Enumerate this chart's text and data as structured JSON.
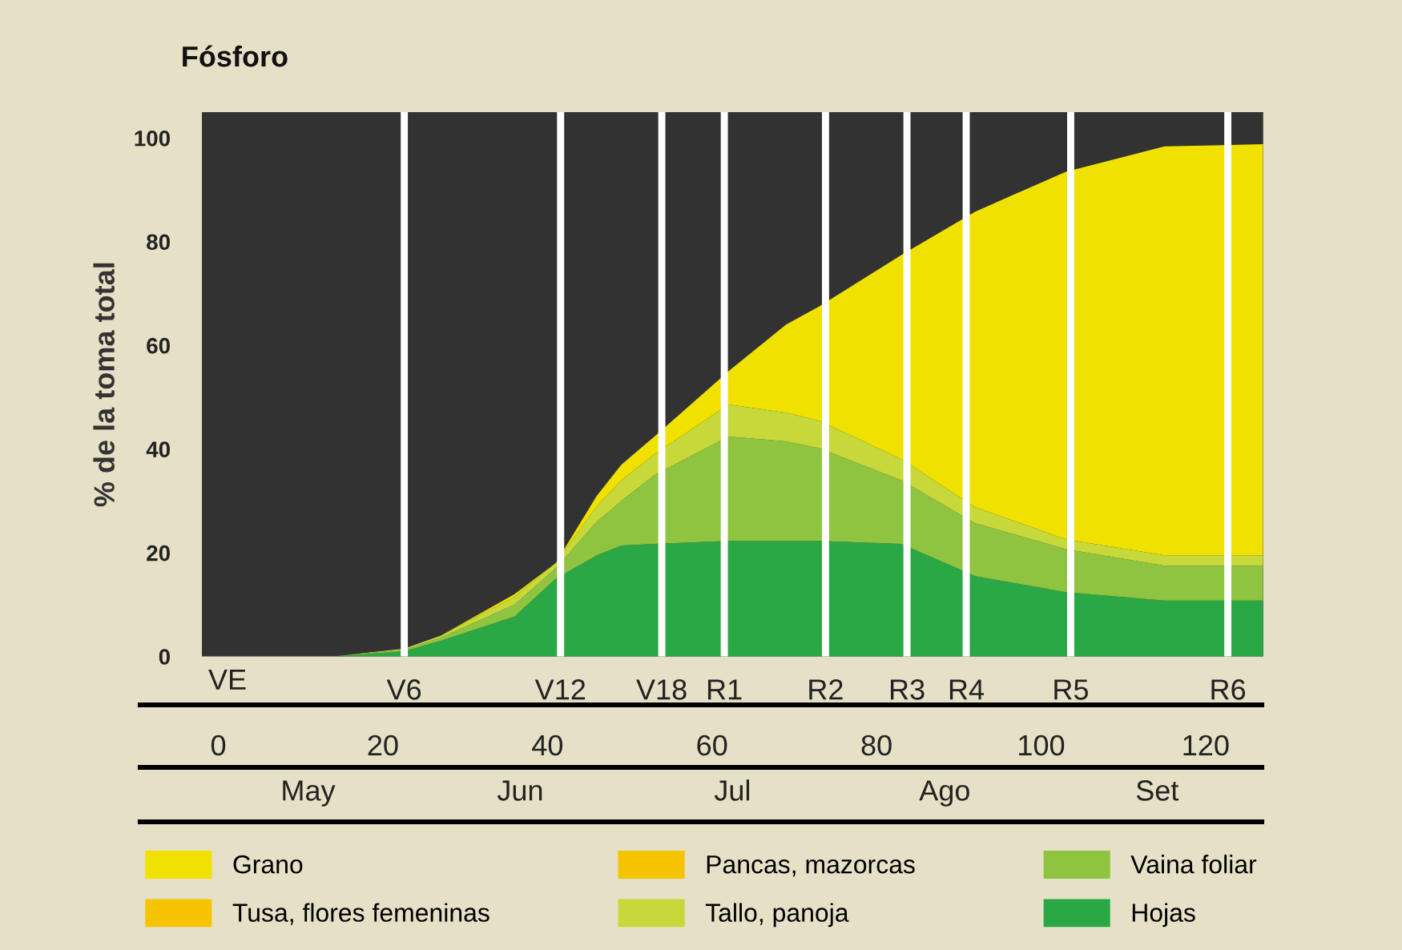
{
  "chart_data": {
    "type": "area",
    "stacked": true,
    "title": "Fósforo",
    "ylabel": "% de la toma total",
    "x": [
      14,
      22.6,
      27,
      36,
      41,
      46,
      49,
      53,
      62,
      69,
      73,
      83,
      92,
      103,
      115,
      127
    ],
    "series": [
      {
        "name": "Hojas",
        "color": "#2aa845",
        "values": [
          0,
          1,
          3,
          7.7,
          15,
          19.5,
          21.4,
          21.7,
          22.3,
          22.3,
          22.3,
          21.7,
          15.5,
          12.4,
          10.8,
          10.8
        ]
      },
      {
        "name": "Vaina foliar",
        "color": "#8fc440",
        "values": [
          0,
          0.3,
          0.6,
          2.3,
          2,
          6.5,
          8.6,
          13.3,
          20.1,
          19.2,
          17.9,
          12.3,
          10.2,
          8.3,
          6.7,
          6.7
        ]
      },
      {
        "name": "Tallo, panoja",
        "color": "#c6d83a",
        "values": [
          0,
          0.2,
          0.4,
          1.5,
          1,
          3,
          4,
          4,
          6.2,
          5.5,
          5.3,
          4.1,
          3.1,
          1.9,
          2,
          2
        ]
      },
      {
        "name": "Pancas, mazorcas",
        "color": "#f5c400",
        "values": [
          null,
          null,
          null,
          null,
          null,
          null,
          null,
          null,
          null,
          null,
          null,
          null,
          null,
          null,
          null,
          null
        ]
      },
      {
        "name": "Tusa, flores femeninas",
        "color": "#f5c400",
        "values": [
          null,
          null,
          null,
          null,
          null,
          null,
          null,
          null,
          null,
          null,
          null,
          null,
          null,
          null,
          null,
          null
        ]
      },
      {
        "name": "Grano",
        "color": "#f0e100",
        "values": [
          0,
          0,
          0,
          0.5,
          0,
          2,
          3,
          3.4,
          6.4,
          17,
          22,
          39.3,
          57,
          70.9,
          78.9,
          79.3
        ]
      }
    ],
    "xlim": [
      -2,
      127
    ],
    "xticks": [
      0,
      20,
      40,
      60,
      80,
      100,
      120
    ],
    "ylim": [
      0,
      105
    ],
    "yticks": [
      0,
      20,
      40,
      60,
      80,
      100
    ],
    "annotations": [
      "VE",
      "May",
      "Jun",
      "Jul",
      "Ago",
      "Set"
    ],
    "ref_lines": [
      {
        "axis": "x",
        "value": 22.6,
        "label": "V6",
        "color": "#ffffff"
      },
      {
        "axis": "x",
        "value": 41.6,
        "label": "V12",
        "color": "#ffffff"
      },
      {
        "axis": "x",
        "value": 53.9,
        "label": "V18",
        "color": "#ffffff"
      },
      {
        "axis": "x",
        "value": 61.5,
        "label": "R1",
        "color": "#ffffff"
      },
      {
        "axis": "x",
        "value": 73.8,
        "label": "R2",
        "color": "#ffffff"
      },
      {
        "axis": "x",
        "value": 83.7,
        "label": "R3",
        "color": "#ffffff"
      },
      {
        "axis": "x",
        "value": 90.9,
        "label": "R4",
        "color": "#ffffff"
      },
      {
        "axis": "x",
        "value": 103.6,
        "label": "R5",
        "color": "#ffffff"
      },
      {
        "axis": "x",
        "value": 122.7,
        "label": "R6",
        "color": "#ffffff"
      }
    ],
    "grid": false,
    "legend": "bottom"
  }
}
